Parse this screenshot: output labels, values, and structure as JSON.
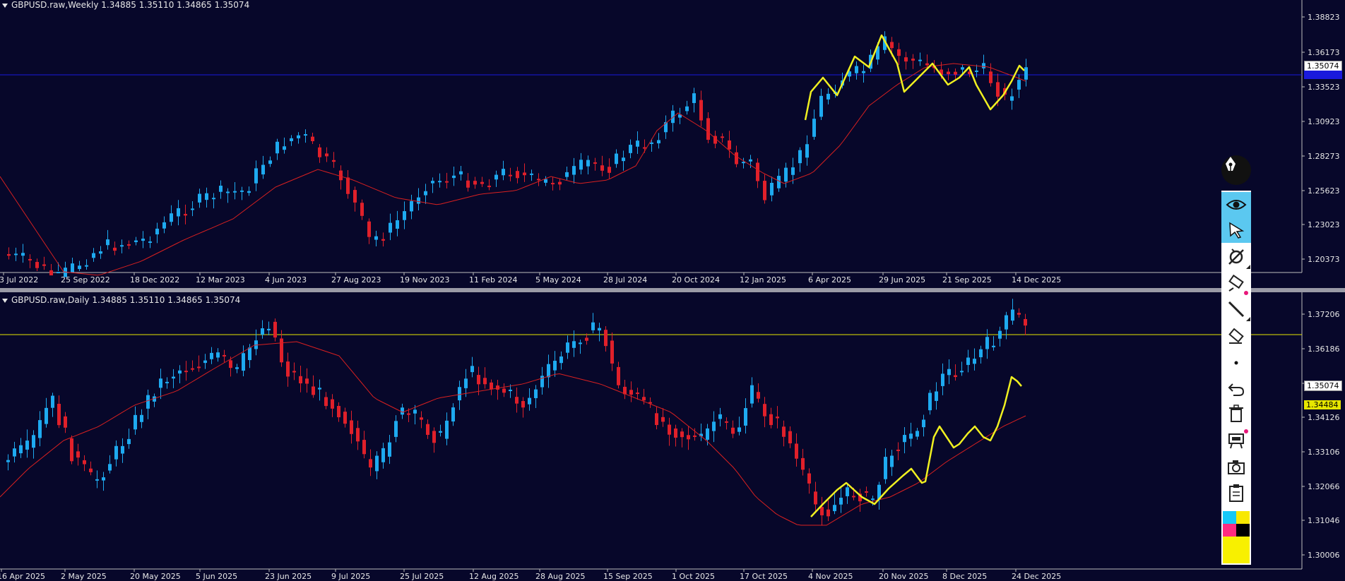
{
  "top_chart": {
    "title": "GBPUSD.raw,Weekly  1.34885 1.35110 1.34865 1.35074",
    "price_labels": [
      "1.38823",
      "1.36173",
      "1.33523",
      "1.30923",
      "1.28273",
      "1.25623",
      "1.23023",
      "1.20373"
    ],
    "current_price": "1.35074",
    "date_labels": [
      "3 Jul 2022",
      "25 Sep 2022",
      "18 Dec 2022",
      "12 Mar 2023",
      "4 Jun 2023",
      "27 Aug 2023",
      "19 Nov 2023",
      "11 Feb 2024",
      "5 May 2024",
      "28 Jul 2024",
      "20 Oct 2024",
      "12 Jan 2025",
      "6 Apr 2025",
      "29 Jun 2025",
      "21 Sep 2025",
      "14 Dec 2025"
    ],
    "hline_color": "#1a1adc"
  },
  "bottom_chart": {
    "title": "GBPUSD.raw,Daily  1.34885 1.35110 1.34865 1.35074",
    "price_labels": [
      "1.37206",
      "1.36186",
      "1.35074",
      "1.34126",
      "1.33106",
      "1.32066",
      "1.31046",
      "1.30006"
    ],
    "current_price": "1.35074",
    "hline_price": "1.34484",
    "hline_color": "#e6e600",
    "date_labels": [
      "16 Apr 2025",
      "2 May 2025",
      "20 May 2025",
      "5 Jun 2025",
      "23 Jun 2025",
      "9 Jul 2025",
      "25 Jul 2025",
      "12 Aug 2025",
      "28 Aug 2025",
      "15 Sep 2025",
      "1 Oct 2025",
      "17 Oct 2025",
      "4 Nov 2025",
      "20 Nov 2025",
      "8 Dec 2025",
      "24 Dec 2025"
    ]
  },
  "colors": {
    "background": "#07072a",
    "bull_candle": "#1eaaf0",
    "bear_candle": "#e0202a",
    "moving_average": "#d82020",
    "drawing_line": "#f0f020",
    "grid_text": "#e6e6e6"
  },
  "toolbar": {
    "tools": [
      "pen-icon",
      "eye-icon",
      "pointer-icon",
      "eraser-off-icon",
      "highlighter-icon",
      "line-tool-icon",
      "eraser-icon",
      "dot-size-icon",
      "undo-icon",
      "trash-icon",
      "presentation-icon",
      "camera-icon",
      "clipboard-icon"
    ],
    "palette": [
      "#16c8f8",
      "#f8e800",
      "#ff2a80",
      "#000000",
      "#f8f000"
    ]
  }
}
